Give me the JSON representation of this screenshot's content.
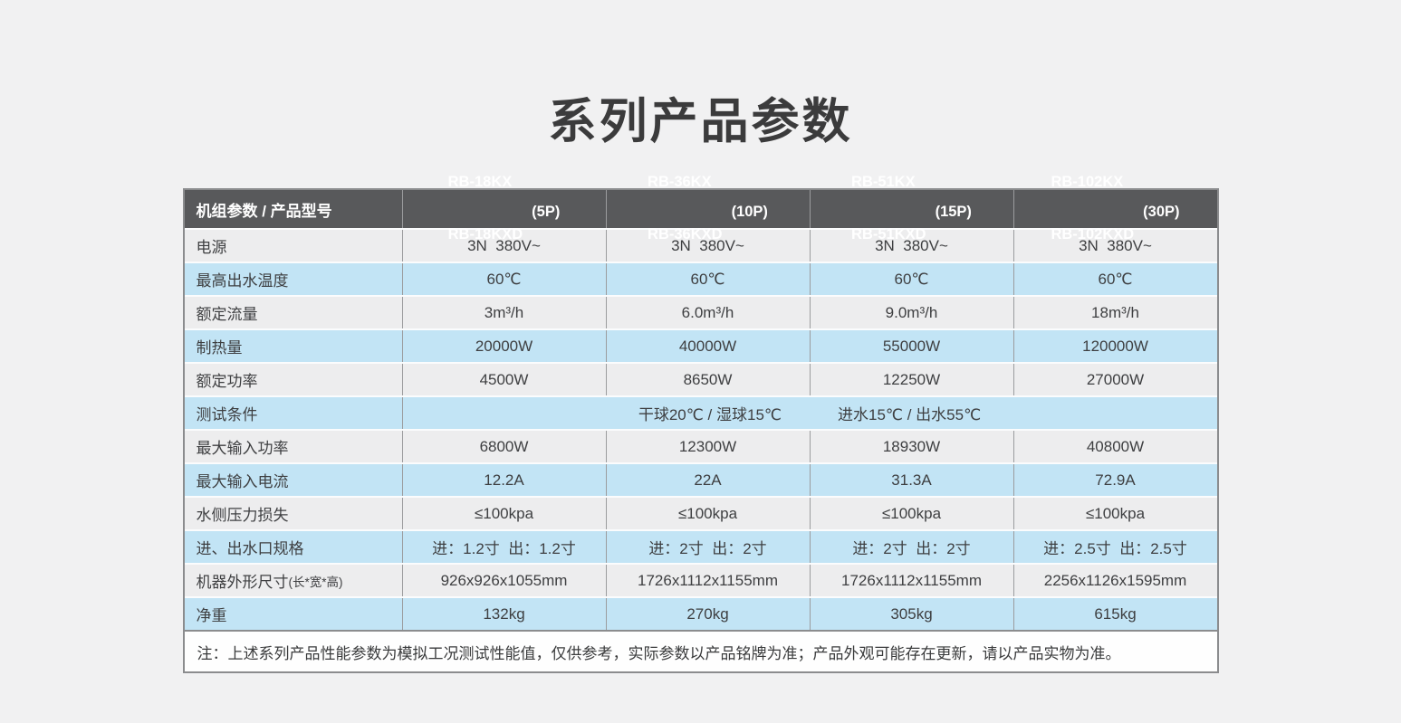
{
  "page": {
    "title": "系列产品参数"
  },
  "colors": {
    "page_bg": "#f1f1f2",
    "header_bg": "#58595b",
    "header_text": "#ffffff",
    "row_gray": "#ededee",
    "row_blue": "#c2e4f5",
    "divider_gray": "#9b9c9e",
    "outer_border": "#8b8c8e",
    "text": "#3e3f41"
  },
  "table": {
    "header": {
      "label": "机组参数 / 产品型号",
      "columns": [
        {
          "line1": "RB-18KX",
          "line2": "RB-18KXD",
          "power": "(5P)"
        },
        {
          "line1": "RB-36KX",
          "line2": "RB-36KXD",
          "power": "(10P)"
        },
        {
          "line1": "RB-51KX",
          "line2": "RB-51KXD",
          "power": "(15P)"
        },
        {
          "line1": "RB-102KX",
          "line2": "RB-102KXD",
          "power": "(30P)"
        }
      ]
    },
    "rows": [
      {
        "label": "电源",
        "tone": "gray",
        "values": [
          "3N  380V~",
          "3N  380V~",
          "3N  380V~",
          "3N  380V~"
        ]
      },
      {
        "label": "最高出水温度",
        "tone": "blue",
        "values": [
          "60℃",
          "60℃",
          "60℃",
          "60℃"
        ]
      },
      {
        "label": "额定流量",
        "tone": "gray",
        "values": [
          "3m³/h",
          "6.0m³/h",
          "9.0m³/h",
          "18m³/h"
        ]
      },
      {
        "label": "制热量",
        "tone": "blue",
        "values": [
          "20000W",
          "40000W",
          "55000W",
          "120000W"
        ]
      },
      {
        "label": "额定功率",
        "tone": "gray",
        "values": [
          "4500W",
          "8650W",
          "12250W",
          "27000W"
        ]
      },
      {
        "label": "测试条件",
        "tone": "blue",
        "span_values": [
          "干球20℃ / 湿球15℃",
          "进水15℃ / 出水55℃"
        ]
      },
      {
        "label": "最大输入功率",
        "tone": "gray",
        "values": [
          "6800W",
          "12300W",
          "18930W",
          "40800W"
        ]
      },
      {
        "label": "最大输入电流",
        "tone": "blue",
        "values": [
          "12.2A",
          "22A",
          "31.3A",
          "72.9A"
        ]
      },
      {
        "label": "水侧压力损失",
        "tone": "gray",
        "values": [
          "≤100kpa",
          "≤100kpa",
          "≤100kpa",
          "≤100kpa"
        ]
      },
      {
        "label": "进、出水口规格",
        "tone": "blue",
        "values": [
          "进：1.2寸  出：1.2寸",
          "进：2寸  出：2寸",
          "进：2寸  出：2寸",
          "进：2.5寸  出：2.5寸"
        ]
      },
      {
        "label": "机器外形尺寸",
        "label_small": "(长*宽*高)",
        "tone": "gray",
        "values": [
          "926x926x1055mm",
          "1726x1112x1155mm",
          "1726x1112x1155mm",
          "2256x1126x1595mm"
        ]
      },
      {
        "label": "净重",
        "tone": "blue",
        "values": [
          "132kg",
          "270kg",
          "305kg",
          "615kg"
        ]
      }
    ],
    "note": "注：上述系列产品性能参数为模拟工况测试性能值，仅供参考，实际参数以产品铭牌为准；产品外观可能存在更新，请以产品实物为准。"
  }
}
